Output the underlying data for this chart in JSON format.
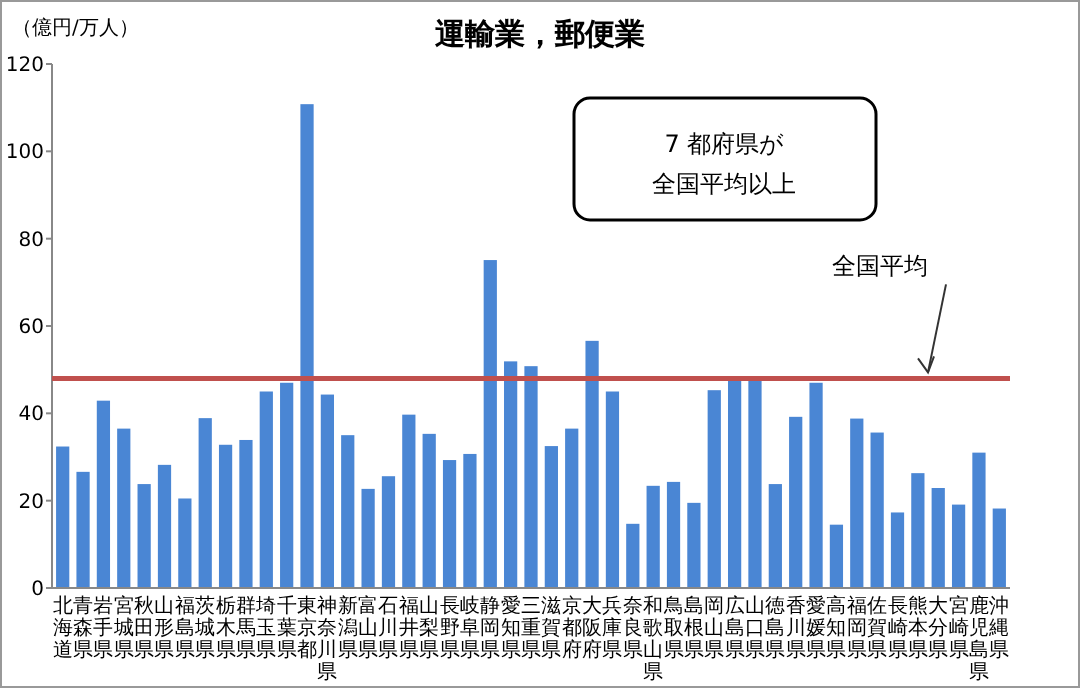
{
  "chart_data": {
    "type": "bar",
    "title": "運輸業，郵便業",
    "ylabel": "（億円/万人）",
    "categories": [
      "北海道",
      "青森県",
      "岩手県",
      "宮城県",
      "秋田県",
      "山形県",
      "福島県",
      "茨城県",
      "栃木県",
      "群馬県",
      "埼玉県",
      "千葉県",
      "東京都",
      "神奈川県",
      "新潟県",
      "富山県",
      "石川県",
      "福井県",
      "山梨県",
      "長野県",
      "岐阜県",
      "静岡県",
      "愛知県",
      "三重県",
      "滋賀県",
      "京都府",
      "大阪府",
      "兵庫県",
      "奈良県",
      "和歌山県",
      "鳥取県",
      "島根県",
      "岡山県",
      "広島県",
      "山口県",
      "徳島県",
      "香川県",
      "愛媛県",
      "高知県",
      "福岡県",
      "佐賀県",
      "長崎県",
      "熊本県",
      "大分県",
      "宮崎県",
      "鹿児島県",
      "沖縄県"
    ],
    "values": [
      32.4,
      26.6,
      42.9,
      36.5,
      23.8,
      28.2,
      20.5,
      38.9,
      32.8,
      33.9,
      45,
      47,
      110.8,
      44.3,
      35,
      22.7,
      25.6,
      39.7,
      35.3,
      29.3,
      30.7,
      75.1,
      51.9,
      50.8,
      32.5,
      36.5,
      56.6,
      45,
      14.7,
      23.4,
      24.3,
      19.5,
      45.3,
      48.5,
      48.5,
      23.8,
      39.2,
      47,
      14.5,
      38.8,
      35.6,
      17.3,
      26.3,
      22.9,
      19.1,
      31,
      18.2
    ],
    "color": "#4a86d4",
    "ylim": [
      0,
      120
    ],
    "yticks": [
      0,
      20,
      40,
      60,
      80,
      100,
      120
    ],
    "grid": false,
    "ref_lines": [
      {
        "axis": "y",
        "value": 48,
        "label": "全国平均",
        "color": "#c0504d"
      }
    ],
    "annotations": [
      "7 都府県が",
      "全国平均以上"
    ]
  }
}
